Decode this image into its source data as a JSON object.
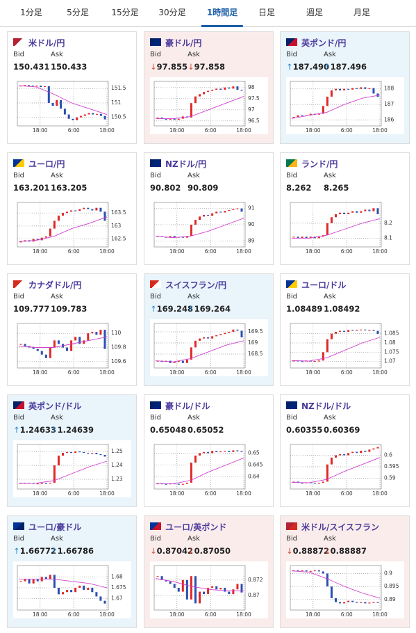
{
  "tabs": [
    {
      "label": "1分足"
    },
    {
      "label": "5分足"
    },
    {
      "label": "15分足"
    },
    {
      "label": "30分足"
    },
    {
      "label": "1時間足",
      "active": true
    },
    {
      "label": "日足"
    },
    {
      "label": "週足"
    },
    {
      "label": "月足"
    }
  ],
  "labels": {
    "bid": "Bid",
    "ask": "Ask"
  },
  "chart_xticks": [
    "18:00",
    "6:00",
    "18:00"
  ],
  "cards": [
    {
      "name": "米ドル/円",
      "bid": "150.431",
      "ask": "150.433",
      "chart": {
        "type": "candlestick",
        "closes": [
          151.6,
          151.62,
          151.6,
          151.58,
          151.6,
          151.55,
          151.58,
          151.0,
          150.9,
          151.1,
          150.8,
          150.6,
          150.45,
          150.4,
          150.5,
          150.55,
          150.6,
          150.65,
          150.6,
          150.62,
          150.55,
          150.43
        ],
        "ma": [
          151.6,
          151.55,
          151.3,
          151.0,
          150.8,
          150.6
        ],
        "ylim": [
          150.3,
          151.65
        ],
        "yticks": [
          150.5,
          151,
          151.5
        ]
      }
    },
    {
      "name": "豪ドル/円",
      "trend": "down",
      "arrow": "↓",
      "bid": "97.855",
      "ask": "97.858",
      "chart": {
        "type": "candlestick",
        "closes": [
          96.65,
          96.6,
          96.55,
          96.6,
          96.55,
          96.6,
          96.7,
          96.65,
          97.3,
          97.6,
          97.7,
          97.8,
          97.85,
          97.9,
          97.95,
          97.9,
          98.0,
          97.95,
          98.05,
          97.9,
          97.86
        ],
        "ma": [
          96.6,
          96.6,
          96.7,
          97.0,
          97.3,
          97.6
        ],
        "ylim": [
          96.4,
          98.15
        ],
        "yticks": [
          96.5,
          97,
          97.5,
          98
        ]
      }
    },
    {
      "name": "英ポンド/円",
      "trend": "up",
      "arrow": "↑",
      "bid": "187.490",
      "ask": "187.496",
      "chart": {
        "type": "candlestick",
        "closes": [
          186.2,
          186.3,
          186.25,
          186.3,
          186.4,
          186.35,
          186.4,
          186.9,
          187.5,
          187.9,
          188.0,
          187.9,
          188.0,
          187.95,
          188.05,
          188.0,
          188.1,
          188.0,
          188.05,
          187.7,
          187.49
        ],
        "ma": [
          186.1,
          186.3,
          186.5,
          187.0,
          187.4,
          187.6
        ],
        "ylim": [
          185.8,
          188.3
        ],
        "yticks": [
          186,
          187,
          188
        ]
      }
    },
    {
      "name": "ユーロ/円",
      "bid": "163.201",
      "ask": "163.205",
      "chart": {
        "type": "candlestick",
        "closes": [
          162.4,
          162.45,
          162.4,
          162.5,
          162.45,
          162.55,
          162.6,
          162.9,
          163.2,
          163.4,
          163.5,
          163.55,
          163.6,
          163.58,
          163.65,
          163.7,
          163.65,
          163.6,
          163.7,
          163.55,
          163.2
        ],
        "ma": [
          162.4,
          162.45,
          162.6,
          162.9,
          163.1,
          163.35
        ],
        "ylim": [
          162.3,
          163.8
        ],
        "yticks": [
          162.5,
          163,
          163.5
        ]
      }
    },
    {
      "name": "NZドル/円",
      "bid": "90.802",
      "ask": "90.809",
      "chart": {
        "type": "candlestick",
        "closes": [
          89.3,
          89.25,
          89.2,
          89.3,
          89.2,
          89.25,
          89.2,
          89.3,
          90.0,
          90.3,
          90.5,
          90.6,
          90.55,
          90.7,
          90.8,
          90.75,
          90.85,
          90.9,
          90.95,
          91.0,
          90.8
        ],
        "ma": [
          89.3,
          89.2,
          89.3,
          89.6,
          90.0,
          90.4
        ],
        "ylim": [
          88.8,
          91.2
        ],
        "yticks": [
          89,
          90,
          91
        ]
      }
    },
    {
      "name": "ランド/円",
      "bid": "8.262",
      "ask": "8.265",
      "chart": {
        "type": "candlestick",
        "closes": [
          8.11,
          8.1,
          8.11,
          8.1,
          8.11,
          8.1,
          8.11,
          8.12,
          8.2,
          8.24,
          8.26,
          8.27,
          8.26,
          8.27,
          8.28,
          8.27,
          8.28,
          8.29,
          8.28,
          8.3,
          8.26
        ],
        "ma": [
          8.1,
          8.1,
          8.12,
          8.16,
          8.2,
          8.23
        ],
        "ylim": [
          8.06,
          8.32
        ],
        "yticks": [
          8.1,
          8.2
        ]
      }
    },
    {
      "name": "カナダドル/円",
      "bid": "109.777",
      "ask": "109.783",
      "chart": {
        "type": "candlestick",
        "closes": [
          109.85,
          109.82,
          109.8,
          109.78,
          109.75,
          109.7,
          109.65,
          109.8,
          109.9,
          109.85,
          109.8,
          109.75,
          109.9,
          109.95,
          109.85,
          109.9,
          110.0,
          110.02,
          109.98,
          110.05,
          109.78
        ],
        "ma": [
          109.82,
          109.8,
          109.8,
          109.85,
          109.9,
          109.95
        ],
        "ylim": [
          109.55,
          110.1
        ],
        "yticks": [
          109.6,
          109.8,
          110
        ]
      }
    },
    {
      "name": "スイスフラン/円",
      "trend": "up",
      "arrow": "↑",
      "bid": "169.248",
      "ask": "169.264",
      "chart": {
        "type": "candlestick",
        "closes": [
          168.2,
          168.15,
          168.2,
          168.1,
          168.15,
          168.2,
          168.1,
          168.25,
          168.8,
          169.1,
          169.2,
          169.25,
          169.2,
          169.3,
          169.35,
          169.4,
          169.45,
          169.5,
          169.6,
          169.55,
          169.25
        ],
        "ma": [
          168.2,
          168.15,
          168.3,
          168.6,
          168.9,
          169.1
        ],
        "ylim": [
          168.0,
          169.75
        ],
        "yticks": [
          168.5,
          169,
          169.5
        ]
      }
    },
    {
      "name": "ユーロ/ドル",
      "bid": "1.08489",
      "ask": "1.08492",
      "chart": {
        "type": "candlestick",
        "closes": [
          1.0705,
          1.0702,
          1.07,
          1.0705,
          1.07,
          1.0703,
          1.0705,
          1.075,
          1.082,
          1.085,
          1.086,
          1.0865,
          1.086,
          1.087,
          1.0868,
          1.087,
          1.0872,
          1.0868,
          1.087,
          1.0865,
          1.0849
        ],
        "ma": [
          1.0705,
          1.0702,
          1.072,
          1.076,
          1.08,
          1.083
        ],
        "ylim": [
          1.068,
          1.089
        ],
        "yticks": [
          1.07,
          1.075,
          1.08,
          1.085
        ]
      }
    },
    {
      "name": "英ポンド/ドル",
      "trend": "up",
      "arrow": "↑",
      "bid": "1.24633",
      "ask": "1.24639",
      "chart": {
        "type": "candlestick",
        "closes": [
          1.2275,
          1.227,
          1.2275,
          1.2268,
          1.227,
          1.2272,
          1.227,
          1.2275,
          1.24,
          1.247,
          1.249,
          1.2495,
          1.249,
          1.25,
          1.2495,
          1.249,
          1.2485,
          1.249,
          1.248,
          1.2475,
          1.2463
        ],
        "ma": [
          1.227,
          1.2272,
          1.229,
          1.234,
          1.239,
          1.243
        ],
        "ylim": [
          1.225,
          1.253
        ],
        "yticks": [
          1.23,
          1.24,
          1.25
        ]
      }
    },
    {
      "name": "豪ドル/ドル",
      "bid": "0.65048",
      "ask": "0.65052",
      "chart": {
        "type": "candlestick",
        "closes": [
          0.6372,
          0.637,
          0.6368,
          0.6372,
          0.637,
          0.6368,
          0.637,
          0.6375,
          0.646,
          0.649,
          0.65,
          0.6505,
          0.65,
          0.651,
          0.6505,
          0.6508,
          0.651,
          0.6505,
          0.6512,
          0.6508,
          0.6505
        ],
        "ma": [
          0.6372,
          0.637,
          0.6385,
          0.642,
          0.645,
          0.648
        ],
        "ylim": [
          0.636,
          0.6525
        ],
        "yticks": [
          0.64,
          0.645,
          0.65
        ]
      }
    },
    {
      "name": "NZドル/ドル",
      "bid": "0.60355",
      "ask": "0.60369",
      "chart": {
        "type": "candlestick",
        "closes": [
          0.5885,
          0.588,
          0.5878,
          0.5882,
          0.588,
          0.5878,
          0.588,
          0.5885,
          0.596,
          0.599,
          0.6,
          0.6005,
          0.6,
          0.601,
          0.6015,
          0.601,
          0.602,
          0.6015,
          0.6025,
          0.603,
          0.6036
        ],
        "ma": [
          0.5882,
          0.588,
          0.5895,
          0.593,
          0.596,
          0.599
        ],
        "ylim": [
          0.5865,
          0.6035
        ],
        "yticks": [
          0.59,
          0.595,
          0.6
        ]
      }
    },
    {
      "name": "ユーロ/豪ドル",
      "trend": "up",
      "arrow": "↑",
      "bid": "1.66772",
      "ask": "1.66786",
      "chart": {
        "type": "candlestick",
        "closes": [
          1.678,
          1.679,
          1.677,
          1.679,
          1.678,
          1.68,
          1.679,
          1.681,
          1.675,
          1.672,
          1.673,
          1.674,
          1.673,
          1.675,
          1.676,
          1.674,
          1.675,
          1.673,
          1.671,
          1.669,
          1.6677
        ],
        "ma": [
          1.679,
          1.679,
          1.679,
          1.678,
          1.677,
          1.675
        ],
        "ylim": [
          1.666,
          1.684
        ],
        "yticks": [
          1.67,
          1.675,
          1.68
        ]
      }
    },
    {
      "name": "ユーロ/英ポンド",
      "trend": "down",
      "arrow": "↓",
      "bid": "0.87042",
      "ask": "0.87050",
      "chart": {
        "type": "candlestick",
        "closes": [
          0.8725,
          0.872,
          0.8718,
          0.8715,
          0.871,
          0.8705,
          0.872,
          0.8695,
          0.8725,
          0.869,
          0.8705,
          0.8702,
          0.871,
          0.8712,
          0.8708,
          0.871,
          0.8705,
          0.8702,
          0.8708,
          0.8715,
          0.8704
        ],
        "ma": [
          0.8722,
          0.8718,
          0.8712,
          0.8708,
          0.8706,
          0.8706
        ],
        "ylim": [
          0.8685,
          0.8735
        ],
        "yticks": [
          0.87,
          0.872
        ]
      }
    },
    {
      "name": "米ドル/スイスフラン",
      "trend": "down",
      "arrow": "↓",
      "bid": "0.88872",
      "ask": "0.88887",
      "chart": {
        "type": "candlestick",
        "closes": [
          0.9012,
          0.901,
          0.9012,
          0.9008,
          0.901,
          0.9012,
          0.9008,
          0.9,
          0.895,
          0.8905,
          0.889,
          0.8885,
          0.889,
          0.8895,
          0.889,
          0.8888,
          0.889,
          0.8885,
          0.8888,
          0.889,
          0.8887
        ],
        "ma": [
          0.901,
          0.9005,
          0.898,
          0.895,
          0.8925,
          0.8905
        ],
        "ylim": [
          0.887,
          0.902
        ],
        "yticks": [
          0.89,
          0.895,
          0.9
        ]
      }
    }
  ]
}
